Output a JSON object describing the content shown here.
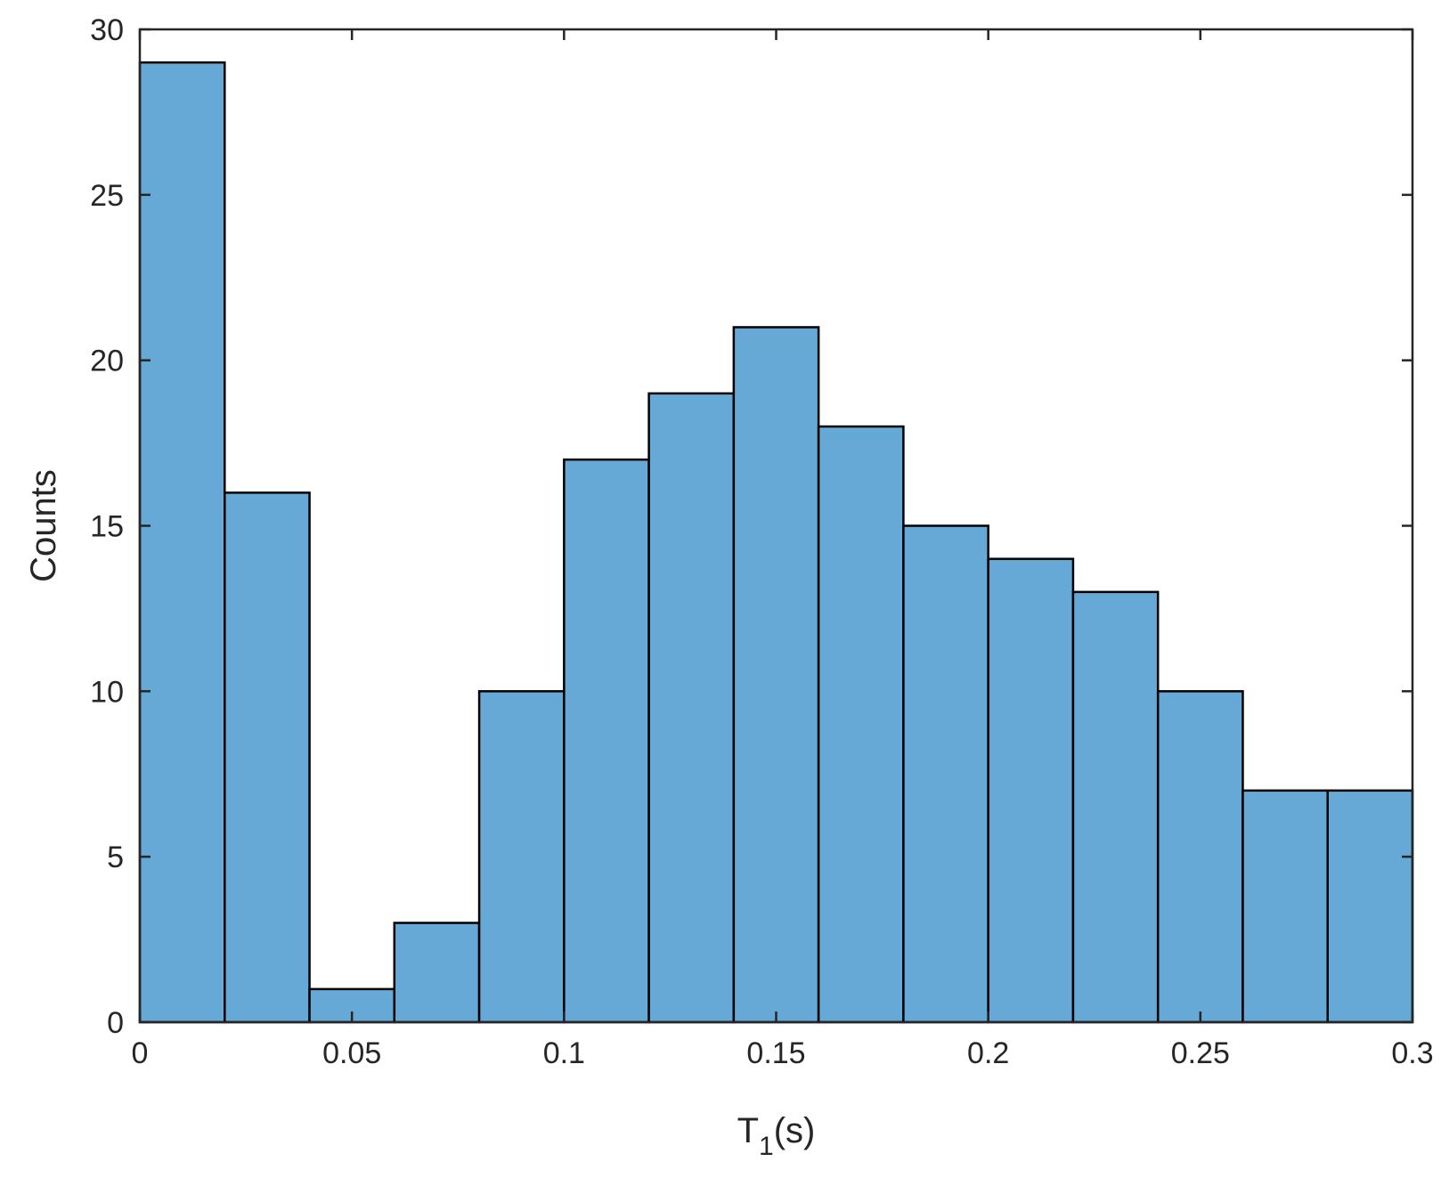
{
  "chart_data": {
    "type": "bar",
    "subtype": "histogram",
    "bin_edges": [
      0,
      0.02,
      0.04,
      0.06,
      0.08,
      0.1,
      0.12,
      0.14,
      0.16,
      0.18,
      0.2,
      0.22,
      0.24,
      0.26,
      0.28,
      0.3
    ],
    "values": [
      29,
      16,
      1,
      3,
      10,
      17,
      19,
      21,
      18,
      15,
      14,
      13,
      10,
      7,
      7
    ],
    "title": "",
    "xlabel": "T",
    "xlabel_subscript": "1",
    "xlabel_suffix": "(s)",
    "ylabel": "Counts",
    "xlim": [
      0,
      0.3
    ],
    "ylim": [
      0,
      30
    ],
    "xticks": [
      0,
      0.05,
      0.1,
      0.15,
      0.2,
      0.25,
      0.3
    ],
    "xtick_labels": [
      "0",
      "0.05",
      "0.1",
      "0.15",
      "0.2",
      "0.25",
      "0.3"
    ],
    "yticks": [
      0,
      5,
      10,
      15,
      20,
      25,
      30
    ],
    "ytick_labels": [
      "0",
      "5",
      "10",
      "15",
      "20",
      "25",
      "30"
    ],
    "grid": false,
    "bar_color": "#66a8d6",
    "edge_color": "#000000"
  }
}
